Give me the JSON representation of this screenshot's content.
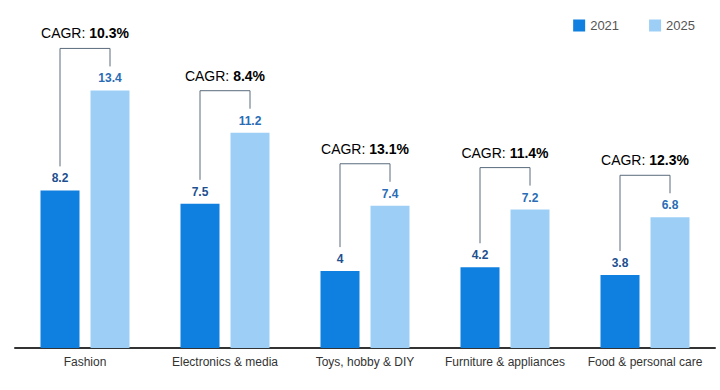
{
  "chart_data": {
    "type": "bar",
    "categories": [
      "Fashion",
      "Electronics & media",
      "Toys, hobby & DIY",
      "Furniture & appliances",
      "Food & personal care"
    ],
    "series": [
      {
        "name": "2021",
        "color": "#0f80e0",
        "values": [
          8.2,
          7.5,
          4,
          4.2,
          3.8
        ]
      },
      {
        "name": "2025",
        "color": "#9dcff6",
        "values": [
          13.4,
          11.2,
          7.4,
          7.2,
          6.8
        ]
      }
    ],
    "annotations": [
      "CAGR: 10.3%",
      "CAGR: 8.4%",
      "CAGR: 13.1%",
      "CAGR: 11.4%",
      "CAGR: 12.3%"
    ],
    "ylim": [
      0,
      18
    ],
    "grid": false,
    "legend": "top-right",
    "data_labels": true,
    "tick_labels": "x"
  }
}
